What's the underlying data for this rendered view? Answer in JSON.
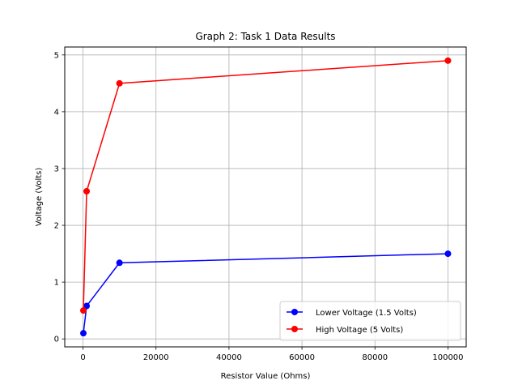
{
  "chart_data": {
    "type": "line",
    "title": "Graph 2: Task 1 Data Results",
    "xlabel": "Resistor Value (Ohms)",
    "ylabel": "Voltage (Volts)",
    "xlim": [
      -5000,
      105000
    ],
    "ylim": [
      -0.14,
      5.14
    ],
    "xticks": [
      0,
      20000,
      40000,
      60000,
      80000,
      100000
    ],
    "xtick_labels": [
      "0",
      "20000",
      "40000",
      "60000",
      "80000",
      "100000"
    ],
    "yticks": [
      0,
      1,
      2,
      3,
      4,
      5
    ],
    "ytick_labels": [
      "0",
      "1",
      "2",
      "3",
      "4",
      "5"
    ],
    "grid": true,
    "legend_position": "lower-right",
    "series": [
      {
        "name": "Lower Voltage (1.5 Volts)",
        "color": "#0000ff",
        "marker": "circle",
        "x": [
          100,
          1000,
          10000,
          100000
        ],
        "y": [
          0.1,
          0.58,
          1.34,
          1.5
        ]
      },
      {
        "name": "High Voltage (5 Volts)",
        "color": "#ff0000",
        "marker": "circle",
        "x": [
          100,
          1000,
          10000,
          100000
        ],
        "y": [
          0.5,
          2.6,
          4.5,
          4.9
        ]
      }
    ]
  }
}
